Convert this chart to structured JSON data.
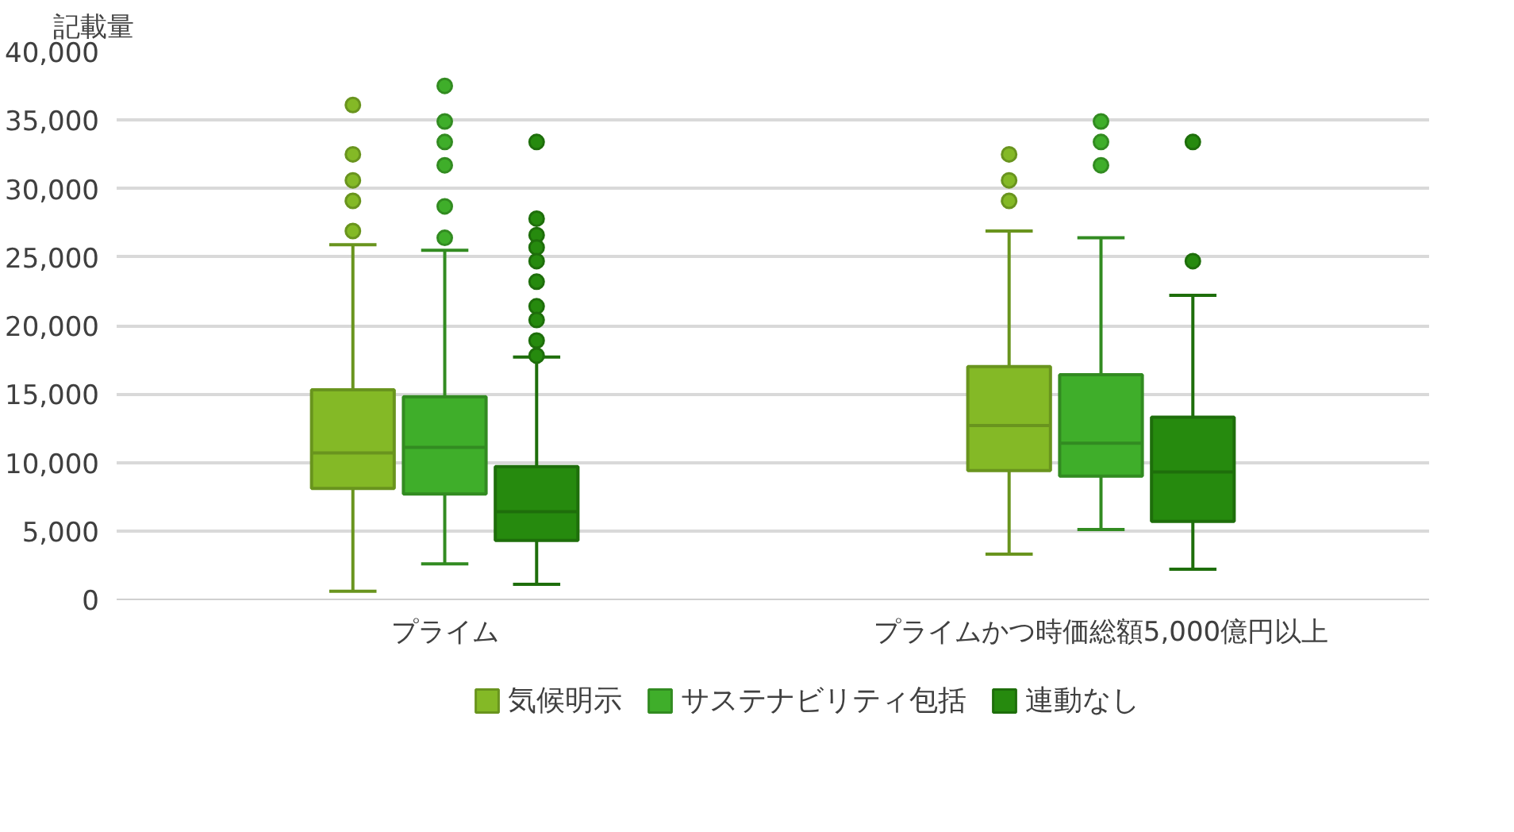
{
  "chart_data": {
    "type": "box",
    "ylabel": "記載量",
    "categories": [
      "プライム",
      "プライムかつ時価総額5,000億円以上"
    ],
    "ylim": [
      0,
      40000
    ],
    "yticks": [
      {
        "value": 0,
        "label": "0"
      },
      {
        "value": 5000,
        "label": "5,000"
      },
      {
        "value": 10000,
        "label": "10,000"
      },
      {
        "value": 15000,
        "label": "15,000"
      },
      {
        "value": 20000,
        "label": "20,000"
      },
      {
        "value": 25000,
        "label": "25,000"
      },
      {
        "value": 30000,
        "label": "30,000"
      },
      {
        "value": 35000,
        "label": "35,000"
      },
      {
        "value": 40000,
        "label": "40,000"
      }
    ],
    "grid": "y",
    "legend": "bottom",
    "series": [
      {
        "name": "気候明示",
        "color": "#84b926",
        "boxes": [
          {
            "low": 600,
            "q1": 8100,
            "median": 10700,
            "q3": 15300,
            "high": 25900,
            "outliers": [
              36100,
              32500,
              30600,
              29100,
              26900
            ]
          },
          {
            "low": 3300,
            "q1": 9400,
            "median": 12700,
            "q3": 17000,
            "high": 26900,
            "outliers": [
              32500,
              30600,
              29100
            ]
          }
        ]
      },
      {
        "name": "サステナビリティ包括",
        "color": "#3fae2a",
        "boxes": [
          {
            "low": 2600,
            "q1": 7700,
            "median": 11100,
            "q3": 14800,
            "high": 25500,
            "outliers": [
              37500,
              34900,
              33400,
              31700,
              28700,
              26400
            ]
          },
          {
            "low": 5100,
            "q1": 9000,
            "median": 11400,
            "q3": 16400,
            "high": 26400,
            "outliers": [
              34900,
              33400,
              31700
            ]
          }
        ]
      },
      {
        "name": "連動なし",
        "color": "#268a0e",
        "boxes": [
          {
            "low": 1100,
            "q1": 4300,
            "median": 6400,
            "q3": 9700,
            "high": 17700,
            "outliers": [
              33400,
              27800,
              26600,
              25700,
              24700,
              23200,
              21400,
              20400,
              18900,
              17800
            ]
          },
          {
            "low": 2200,
            "q1": 5700,
            "median": 9300,
            "q3": 13300,
            "high": 22200,
            "outliers": [
              33400,
              24700
            ]
          }
        ]
      }
    ]
  }
}
